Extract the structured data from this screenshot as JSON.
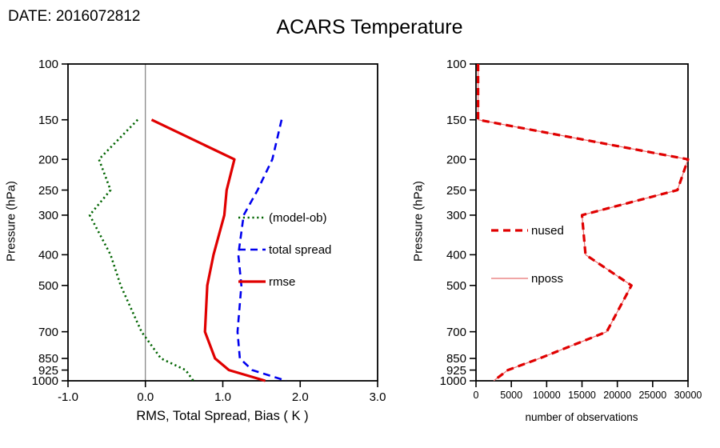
{
  "page": {
    "date_label": "DATE: 2016072812",
    "title": "ACARS Temperature"
  },
  "colors": {
    "bias_green": "#006400",
    "spread_blue": "#0000ee",
    "rmse_red": "#e00000",
    "nused_red": "#e00000",
    "nposs_light_red": "#e87070",
    "axis_black": "#000000",
    "zero_line_gray": "#666666"
  },
  "chart_data": [
    {
      "type": "line",
      "id": "stats-panel",
      "xlabel": "RMS, Total Spread, Bias ( K )",
      "ylabel": "Pressure (hPa)",
      "x_range": [
        -1.0,
        3.0
      ],
      "x_ticks": {
        "values": [
          -1,
          0,
          1,
          2,
          3
        ],
        "labels": [
          "-1.0",
          "0.0",
          "1.0",
          "2.0",
          "3.0"
        ]
      },
      "y_scale": "log-inverted",
      "y_range": [
        100,
        1000
      ],
      "y_ticks": [
        100,
        150,
        200,
        250,
        300,
        400,
        500,
        700,
        850,
        925,
        1000
      ],
      "reference_line_x": 0.0,
      "series": [
        {
          "name": "(model-ob)",
          "color": "#006400",
          "line_style": "dotted",
          "width": 2.6,
          "pressure_hpa": [
            150,
            200,
            250,
            300,
            400,
            500,
            700,
            850,
            925,
            1000
          ],
          "values": [
            -0.1,
            -0.6,
            -0.45,
            -0.72,
            -0.45,
            -0.32,
            -0.05,
            0.2,
            0.52,
            0.62
          ]
        },
        {
          "name": "total spread",
          "color": "#0000ee",
          "line_style": "dashed",
          "width": 2.6,
          "pressure_hpa": [
            150,
            200,
            250,
            300,
            400,
            500,
            700,
            850,
            925,
            1000
          ],
          "values": [
            1.76,
            1.64,
            1.45,
            1.27,
            1.2,
            1.24,
            1.19,
            1.22,
            1.38,
            1.82
          ]
        },
        {
          "name": "rmse",
          "color": "#e00000",
          "line_style": "solid",
          "width": 3.2,
          "pressure_hpa": [
            150,
            200,
            250,
            300,
            400,
            500,
            700,
            850,
            925,
            1000
          ],
          "values": [
            0.08,
            1.15,
            1.05,
            1.02,
            0.88,
            0.8,
            0.77,
            0.9,
            1.08,
            1.55
          ]
        }
      ]
    },
    {
      "type": "line",
      "id": "counts-panel",
      "xlabel": "number of observations",
      "ylabel": "Pressure (hPa)",
      "x_range": [
        0,
        30000
      ],
      "x_ticks": {
        "values": [
          0,
          5000,
          10000,
          15000,
          20000,
          25000,
          30000
        ],
        "labels": [
          "0",
          "5000",
          "10000",
          "15000",
          "20000",
          "25000",
          "30000"
        ]
      },
      "y_scale": "log-inverted",
      "y_range": [
        100,
        1000
      ],
      "y_ticks": [
        100,
        150,
        200,
        250,
        300,
        400,
        500,
        700,
        850,
        925,
        1000
      ],
      "series": [
        {
          "name": "nposs",
          "color": "#e87070",
          "line_style": "solid",
          "width": 1.2,
          "pressure_hpa": [
            100,
            150,
            200,
            250,
            300,
            400,
            500,
            700,
            850,
            925,
            1000
          ],
          "values": [
            300,
            300,
            30000,
            28500,
            15000,
            15500,
            22000,
            18500,
            9000,
            4500,
            2500
          ]
        },
        {
          "name": "nused",
          "color": "#e00000",
          "line_style": "dashed",
          "width": 3.2,
          "pressure_hpa": [
            100,
            150,
            200,
            250,
            300,
            400,
            500,
            700,
            850,
            925,
            1000
          ],
          "values": [
            300,
            300,
            30000,
            28500,
            15000,
            15500,
            22000,
            18500,
            9000,
            4500,
            2500
          ]
        }
      ]
    }
  ]
}
